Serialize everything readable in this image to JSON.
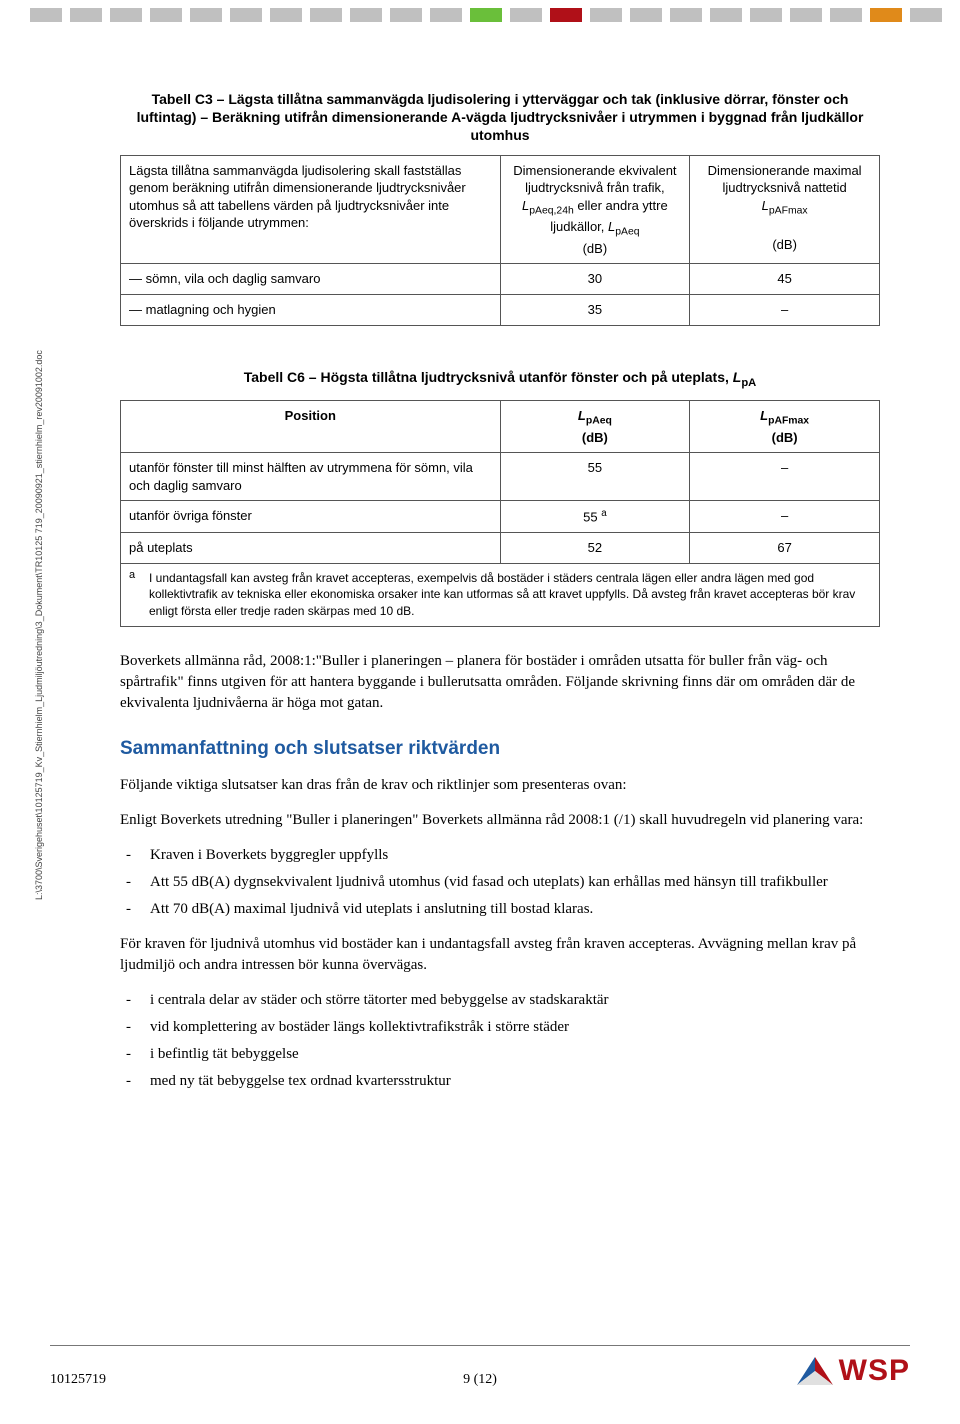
{
  "topbar": {
    "colors": [
      "#c0c0c0",
      "#c0c0c0",
      "#c0c0c0",
      "#c0c0c0",
      "#c0c0c0",
      "#c0c0c0",
      "#c0c0c0",
      "#c0c0c0",
      "#c0c0c0",
      "#c0c0c0",
      "#c0c0c0",
      "#6abf3a",
      "#c0c0c0",
      "#b01018",
      "#c0c0c0",
      "#c0c0c0",
      "#c0c0c0",
      "#c0c0c0",
      "#c0c0c0",
      "#c0c0c0",
      "#c0c0c0",
      "#e08a1a",
      "#c0c0c0"
    ]
  },
  "table_c3": {
    "caption": "Tabell C3 – Lägsta tillåtna sammanvägda ljudisolering i ytterväggar och tak (inklusive dörrar, fönster och luftintag) – Beräkning utifrån dimensionerande A-vägda ljudtrycksnivåer i utrymmen i byggnad från ljudkällor utomhus",
    "head": {
      "c0": "Lägsta tillåtna sammanvägda ljudisolering skall fastställas genom beräkning utifrån dimensionerande ljudtrycksnivåer utomhus så att tabellens värden på ljudtrycksnivåer inte överskrids i följande utrymmen:",
      "c1_html": "Dimensionerande ekvivalent ljudtrycksnivå från trafik, <i>L</i><span class='sub'>pAeq,24h</span> eller andra yttre ljudkällor, <i>L</i><span class='sub'>pAeq</span><br>(dB)",
      "c2_html": "Dimensionerande maximal ljudtrycksnivå nattetid <i>L</i><span class='sub'>pAFmax</span><br><br>(dB)"
    },
    "rows": [
      {
        "label": "— sömn, vila och daglig samvaro",
        "v1": "30",
        "v2": "45"
      },
      {
        "label": "— matlagning och hygien",
        "v1": "35",
        "v2": "–"
      }
    ]
  },
  "table_c6": {
    "caption_html": "Tabell C6 – Högsta tillåtna ljudtrycksnivå utanför fönster och på uteplats, <i>L</i><span class='sub'>pA</span>",
    "head": {
      "c0": "Position",
      "c1_html": "<i>L</i><span class='sub'>pAeq</span><br>(dB)",
      "c2_html": "<i>L</i><span class='sub'>pAFmax</span><br>(dB)"
    },
    "rows": [
      {
        "label": "utanför fönster till minst hälften av utrymmena för sömn, vila och daglig samvaro",
        "v1": "55",
        "v2": "–"
      },
      {
        "label_html": "utanför övriga fönster",
        "v1_html": "55 <span class='sup'>a</span>",
        "v2": "–"
      },
      {
        "label": "på uteplats",
        "v1": "52",
        "v2": "67"
      }
    ],
    "footnote": {
      "mark": "a",
      "text": "I undantagsfall kan avsteg från kravet accepteras, exempelvis då bostäder i städers centrala lägen eller andra lägen med god kollektivtrafik av tekniska eller ekonomiska orsaker inte kan utformas så att kravet uppfylls. Då avsteg från kravet accepteras bör krav enligt första eller tredje raden skärpas med 10 dB."
    }
  },
  "body": {
    "p1": "Boverkets allmänna råd, 2008:1:\"Buller i planeringen – planera för bostäder i områden utsatta för buller från väg- och spårtrafik\" finns utgiven för att hantera byggande i bullerutsatta områden. Följande skrivning finns där om områden där de ekvivalenta ljudnivåerna är höga mot gatan.",
    "section_title": "Sammanfattning och slutsatser riktvärden",
    "p2": "Följande viktiga slutsatser kan dras från de krav och riktlinjer som presenteras ovan:",
    "p3": "Enligt Boverkets utredning \"Buller i planeringen\" Boverkets allmänna råd 2008:1 (/1) skall huvudregeln vid planering vara:",
    "list1": [
      "Kraven i Boverkets byggregler uppfylls",
      "Att 55 dB(A) dygnsekvivalent ljudnivå utomhus (vid fasad och uteplats) kan erhållas med hänsyn till trafikbuller",
      "Att 70 dB(A) maximal ljudnivå vid uteplats i anslutning till bostad klaras."
    ],
    "p4": "För kraven för ljudnivå utomhus vid bostäder kan i undantagsfall avsteg från kraven accepteras. Avvägning mellan krav på ljudmiljö och andra intressen bör kunna övervägas.",
    "list2": [
      "i centrala delar av städer och större tätorter med bebyggelse av stadskaraktär",
      "vid komplettering av bostäder längs kollektivtrafikstråk i större städer",
      "i befintlig tät bebyggelse",
      "med ny tät bebyggelse tex ordnad kvartersstruktur"
    ]
  },
  "side_path": "L:\\3700\\Sverigehuset\\10125719_Kv_Stiernhielm_Ljudmiljöutredning\\3_Dokument\\TR10125\n719_20090921_stiernhielm_rev20091002.doc",
  "footer": {
    "docnum": "10125719",
    "page": "9 (12)",
    "logo_text": "WSP"
  }
}
